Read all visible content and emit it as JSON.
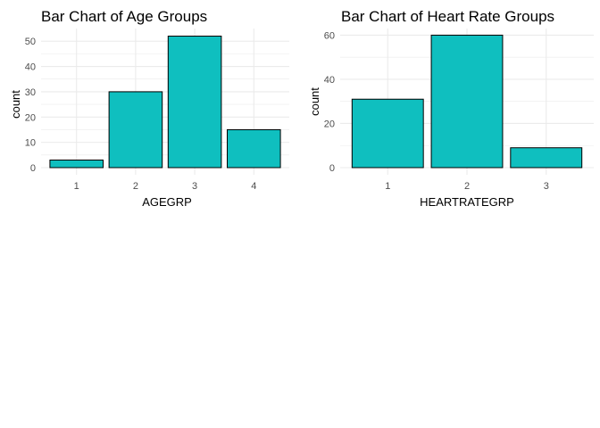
{
  "colors": {
    "bar_fill": "#0FBFBF",
    "bar_stroke": "#000000",
    "grid": "#EBEBEB",
    "text": "#000000",
    "tick_text": "#4D4D4D"
  },
  "chart_data": [
    {
      "type": "bar",
      "title": "Bar Chart of Age Groups",
      "xlabel": "AGEGRP",
      "ylabel": "count",
      "categories": [
        "1",
        "2",
        "3",
        "4"
      ],
      "values": [
        3,
        30,
        52,
        15
      ],
      "ylim": [
        0,
        55
      ],
      "yticks": [
        0,
        10,
        20,
        30,
        40,
        50
      ],
      "grid": true
    },
    {
      "type": "bar",
      "title": "Bar Chart of Heart Rate Groups",
      "xlabel": "HEARTRATEGRP",
      "ylabel": "count",
      "categories": [
        "1",
        "2",
        "3"
      ],
      "values": [
        31,
        60,
        9
      ],
      "ylim": [
        0,
        63
      ],
      "yticks": [
        0,
        20,
        40,
        60
      ],
      "grid": true
    }
  ]
}
